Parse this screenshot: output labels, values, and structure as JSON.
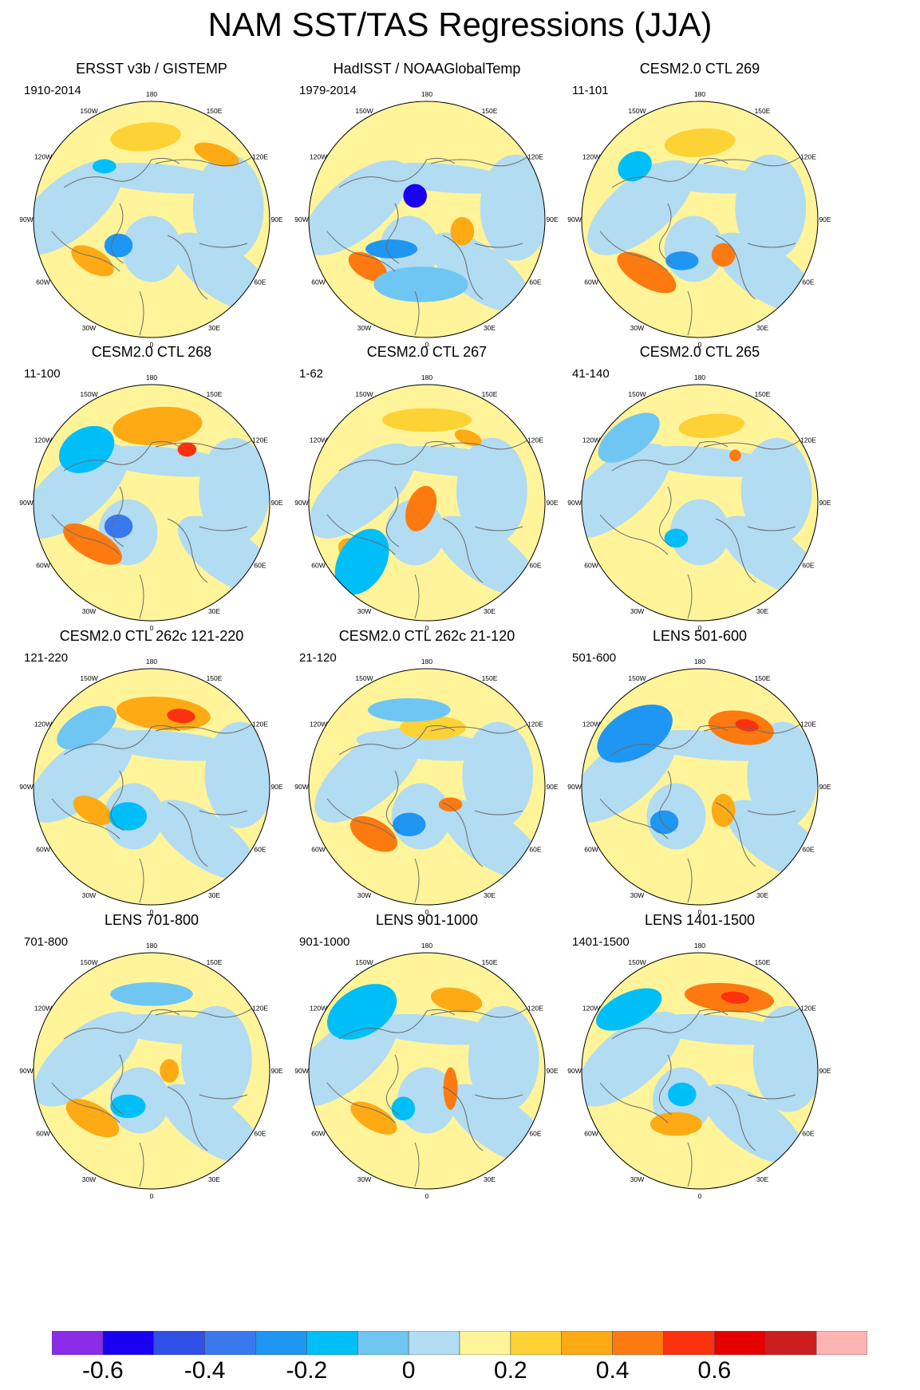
{
  "title": "NAM SST/TAS Regressions (JJA)",
  "longitude_labels": [
    "180",
    "150E",
    "120E",
    "90E",
    "60E",
    "30E",
    "0",
    "30W",
    "60W",
    "90W",
    "120W",
    "150W"
  ],
  "panels": [
    {
      "title": "ERSST v3b / GISTEMP",
      "period": "1910-2014"
    },
    {
      "title": "HadISST / NOAAGlobalTemp",
      "period": "1979-2014"
    },
    {
      "title": "CESM2.0 CTL 269",
      "period": "11-101"
    },
    {
      "title": "CESM2.0 CTL 268",
      "period": "11-100"
    },
    {
      "title": "CESM2.0 CTL 267",
      "period": "1-62"
    },
    {
      "title": "CESM2.0 CTL 265",
      "period": "41-140"
    },
    {
      "title": "CESM2.0 CTL 262c 121-220",
      "period": "121-220"
    },
    {
      "title": "CESM2.0 CTL 262c 21-120",
      "period": "21-120"
    },
    {
      "title": "LENS 501-600",
      "period": "501-600"
    },
    {
      "title": "LENS 701-800",
      "period": "701-800"
    },
    {
      "title": "LENS 901-1000",
      "period": "901-1000"
    },
    {
      "title": "LENS 1401-1500",
      "period": "1401-1500"
    }
  ],
  "colorbar": {
    "colors": [
      "#8a2be8",
      "#1a00f0",
      "#2f4fe6",
      "#3a78ee",
      "#1e96f2",
      "#00bef8",
      "#6fc6f2",
      "#b2dcf2",
      "#fff49a",
      "#fdd235",
      "#fdaa14",
      "#fd7a10",
      "#fc320e",
      "#e50000",
      "#cc1e1e",
      "#ffb4b4"
    ],
    "labels": [
      "-0.6",
      "-0.4",
      "-0.2",
      "0",
      "0.2",
      "0.4",
      "0.6"
    ]
  },
  "chart_data": {
    "type": "map-panels",
    "title": "NAM SST/TAS Regressions (JJA)",
    "projection": "north polar stereographic",
    "variable": "SST/TAS regression on NAM index",
    "color_levels": [
      -0.7,
      -0.6,
      -0.5,
      -0.4,
      -0.3,
      -0.2,
      -0.1,
      0,
      0.1,
      0.2,
      0.3,
      0.4,
      0.5,
      0.6,
      0.7
    ],
    "colorbar_ticks": [
      -0.6,
      -0.4,
      -0.2,
      0,
      0.2,
      0.4,
      0.6
    ]
  }
}
